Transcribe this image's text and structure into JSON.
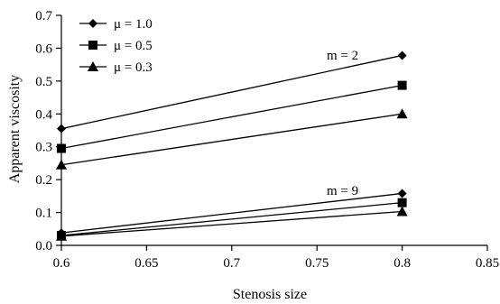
{
  "chart_data": {
    "type": "line",
    "xlabel": "Stenosis size",
    "ylabel": "Apparent viscosity",
    "xlim": [
      0.6,
      0.85
    ],
    "ylim": [
      0,
      0.7
    ],
    "xticks": [
      "0.6",
      "0.65",
      "0.7",
      "0.75",
      "0.8",
      "0.85"
    ],
    "yticks": [
      "0.0",
      "0.1",
      "0.2",
      "0.3",
      "0.4",
      "0.5",
      "0.6",
      "0.7"
    ],
    "legend_position": "top-left",
    "grid": false,
    "annotations": [
      "m = 2",
      "m = 9"
    ],
    "series": [
      {
        "name": "μ = 1.0",
        "marker": "diamond",
        "group": "m = 2",
        "x": [
          0.6,
          0.8
        ],
        "y": [
          0.355,
          0.578
        ]
      },
      {
        "name": "μ = 0.5",
        "marker": "square",
        "group": "m = 2",
        "x": [
          0.6,
          0.8
        ],
        "y": [
          0.295,
          0.487
        ]
      },
      {
        "name": "μ = 0.3",
        "marker": "triangle",
        "group": "m = 2",
        "x": [
          0.6,
          0.8
        ],
        "y": [
          0.245,
          0.4
        ]
      },
      {
        "name": "μ = 1.0",
        "marker": "diamond",
        "group": "m = 9",
        "x": [
          0.6,
          0.8
        ],
        "y": [
          0.038,
          0.158
        ]
      },
      {
        "name": "μ = 0.5",
        "marker": "square",
        "group": "m = 9",
        "x": [
          0.6,
          0.8
        ],
        "y": [
          0.03,
          0.13
        ]
      },
      {
        "name": "μ = 0.3",
        "marker": "triangle",
        "group": "m = 9",
        "x": [
          0.6,
          0.8
        ],
        "y": [
          0.028,
          0.103
        ]
      }
    ]
  }
}
